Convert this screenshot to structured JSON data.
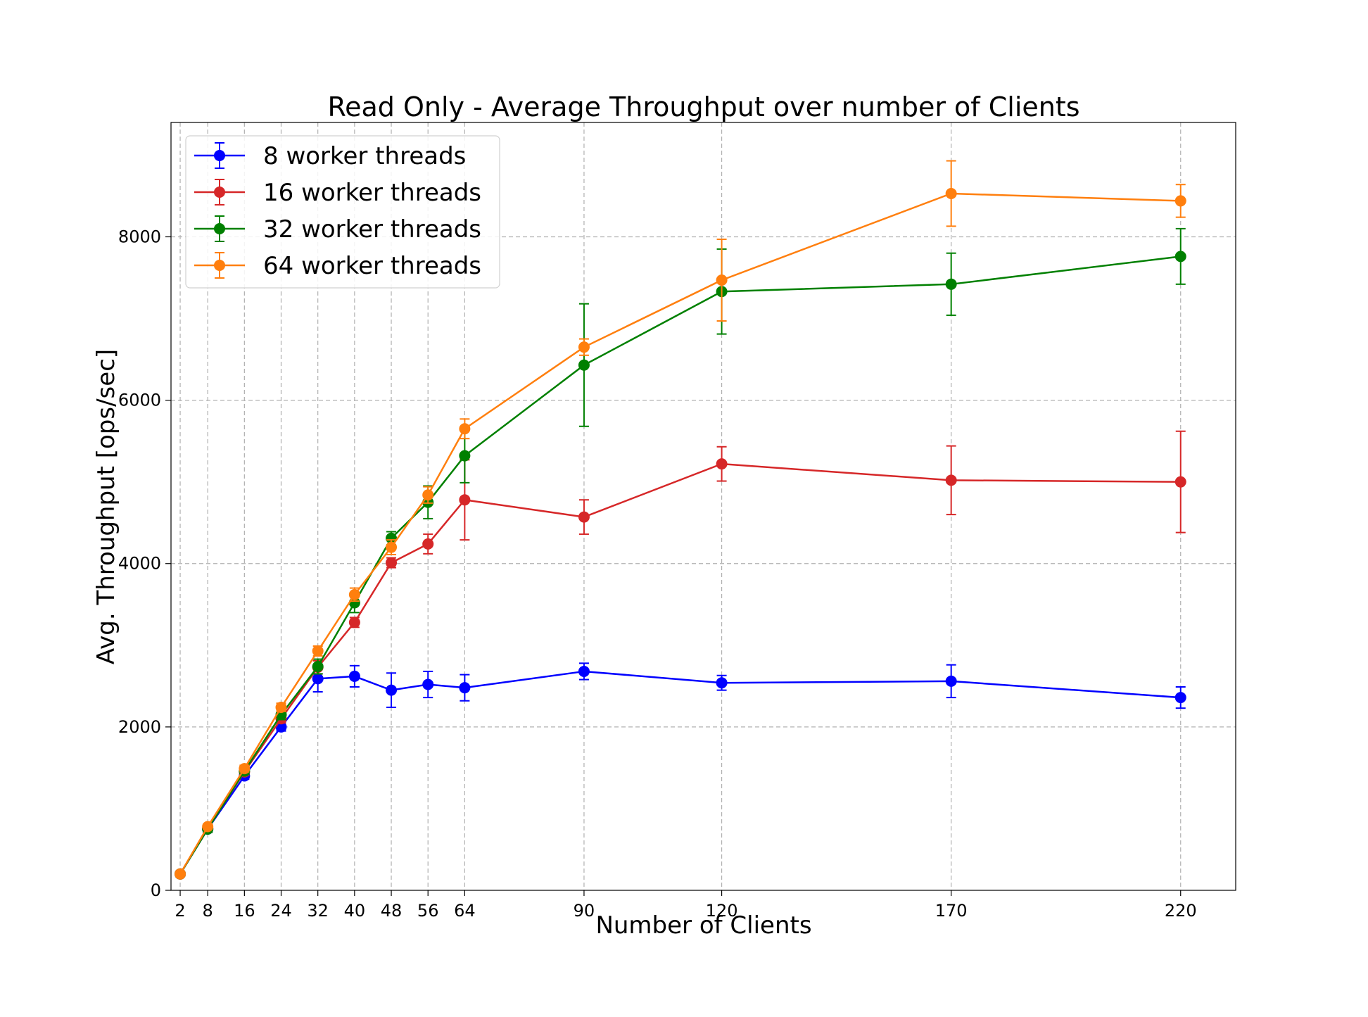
{
  "chart_data": {
    "type": "line",
    "title": "Read Only - Average Throughput over number of Clients",
    "xlabel": "Number of Clients",
    "ylabel": "Avg. Throughput [ops/sec]",
    "x": [
      2,
      8,
      16,
      24,
      32,
      40,
      48,
      56,
      64,
      90,
      120,
      170,
      220
    ],
    "x_tick_labels": [
      "2",
      "8",
      "16",
      "24",
      "32",
      "40",
      "48",
      "56",
      "64",
      "90",
      "120",
      "170",
      "220"
    ],
    "y_ticks": [
      0,
      2000,
      4000,
      6000,
      8000
    ],
    "y_tick_labels": [
      "0",
      "2000",
      "4000",
      "6000",
      "8000"
    ],
    "xlim": [
      0,
      232
    ],
    "ylim": [
      0,
      9400
    ],
    "grid": true,
    "legend_position": "top-left",
    "series": [
      {
        "name": "8 worker threads",
        "color": "#0000ff",
        "values": [
          200,
          750,
          1400,
          2000,
          2590,
          2620,
          2450,
          2520,
          2480,
          2680,
          2540,
          2560,
          2360
        ],
        "errors": [
          30,
          40,
          40,
          50,
          160,
          130,
          210,
          160,
          160,
          100,
          90,
          200,
          130
        ]
      },
      {
        "name": "16 worker threads",
        "color": "#d62728",
        "values": [
          200,
          760,
          1450,
          2100,
          2730,
          3280,
          4010,
          4240,
          4780,
          4570,
          5220,
          5020,
          5000
        ],
        "errors": [
          30,
          30,
          40,
          50,
          80,
          60,
          60,
          120,
          490,
          210,
          210,
          420,
          620
        ]
      },
      {
        "name": "32 worker threads",
        "color": "#008000",
        "values": [
          200,
          750,
          1460,
          2150,
          2740,
          3520,
          4310,
          4750,
          5320,
          6430,
          7330,
          7420,
          7760
        ],
        "errors": [
          30,
          40,
          40,
          60,
          90,
          120,
          80,
          200,
          330,
          750,
          520,
          380,
          340
        ]
      },
      {
        "name": "64 worker threads",
        "color": "#ff7f0e",
        "values": [
          200,
          780,
          1490,
          2240,
          2930,
          3620,
          4200,
          4840,
          5650,
          6650,
          7470,
          8530,
          8440
        ],
        "errors": [
          30,
          30,
          40,
          50,
          60,
          80,
          90,
          100,
          120,
          100,
          500,
          400,
          200
        ]
      }
    ]
  }
}
